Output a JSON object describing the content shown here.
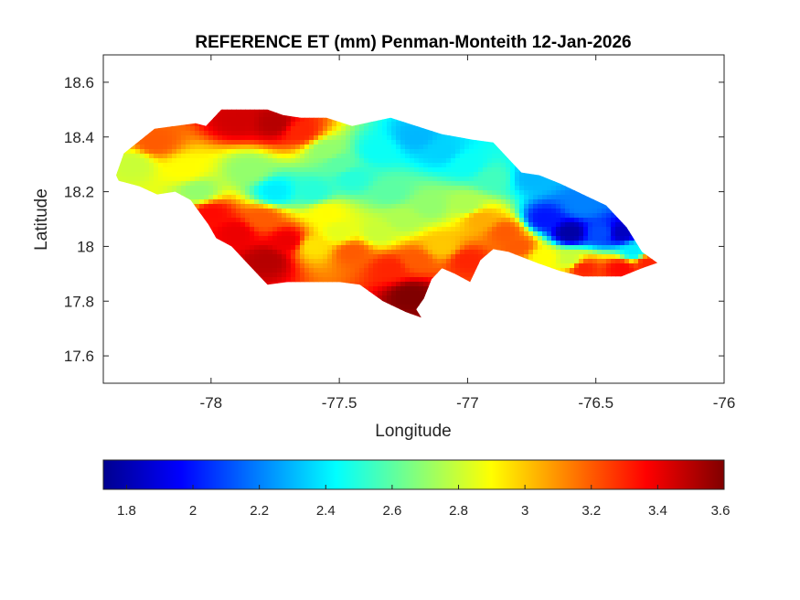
{
  "chart_data": {
    "type": "heatmap",
    "title": "REFERENCE ET (mm) Penman-Monteith 12-Jan-2026",
    "xlabel": "Longitude",
    "ylabel": "Latitude",
    "xlim": [
      -78.42,
      -76
    ],
    "ylim": [
      17.5,
      18.7
    ],
    "x_ticks": [
      -78,
      -77.5,
      -77,
      -76.5,
      -76
    ],
    "x_tick_labels": [
      "-78",
      "-77.5",
      "-77",
      "-76.5",
      "-76"
    ],
    "y_ticks": [
      17.6,
      17.8,
      18,
      18.2,
      18.4,
      18.6
    ],
    "y_tick_labels": [
      "17.6",
      "17.8",
      "18",
      "18.2",
      "18.4",
      "18.6"
    ],
    "colormap": "jet",
    "colorbar": {
      "location": "below",
      "range": [
        1.73,
        3.6
      ],
      "ticks": [
        1.8,
        2,
        2.2,
        2.4,
        2.6,
        2.8,
        3,
        3.2,
        3.4,
        3.6
      ],
      "tick_labels": [
        "1.8",
        "2",
        "2.2",
        "2.4",
        "2.6",
        "2.8",
        "3",
        "3.2",
        "3.4",
        "3.6"
      ]
    },
    "grid": false,
    "land_outline": [
      [
        -78.37,
        18.26
      ],
      [
        -78.34,
        18.34
      ],
      [
        -78.22,
        18.43
      ],
      [
        -78.06,
        18.45
      ],
      [
        -78.02,
        18.44
      ],
      [
        -77.96,
        18.5
      ],
      [
        -77.78,
        18.5
      ],
      [
        -77.72,
        18.48
      ],
      [
        -77.65,
        18.47
      ],
      [
        -77.55,
        18.47
      ],
      [
        -77.45,
        18.44
      ],
      [
        -77.3,
        18.47
      ],
      [
        -77.1,
        18.41
      ],
      [
        -76.98,
        18.39
      ],
      [
        -76.9,
        18.38
      ],
      [
        -76.83,
        18.31
      ],
      [
        -76.79,
        18.27
      ],
      [
        -76.72,
        18.26
      ],
      [
        -76.64,
        18.23
      ],
      [
        -76.55,
        18.19
      ],
      [
        -76.46,
        18.15
      ],
      [
        -76.38,
        18.07
      ],
      [
        -76.32,
        17.98
      ],
      [
        -76.26,
        17.94
      ],
      [
        -76.32,
        17.92
      ],
      [
        -76.4,
        17.89
      ],
      [
        -76.55,
        17.89
      ],
      [
        -76.64,
        17.91
      ],
      [
        -76.73,
        17.94
      ],
      [
        -76.84,
        17.98
      ],
      [
        -76.9,
        17.99
      ],
      [
        -76.95,
        17.95
      ],
      [
        -76.99,
        17.87
      ],
      [
        -77.05,
        17.9
      ],
      [
        -77.1,
        17.92
      ],
      [
        -77.14,
        17.88
      ],
      [
        -77.17,
        17.81
      ],
      [
        -77.2,
        17.77
      ],
      [
        -77.18,
        17.74
      ],
      [
        -77.24,
        17.76
      ],
      [
        -77.33,
        17.8
      ],
      [
        -77.42,
        17.86
      ],
      [
        -77.5,
        17.87
      ],
      [
        -77.6,
        17.87
      ],
      [
        -77.7,
        17.87
      ],
      [
        -77.78,
        17.86
      ],
      [
        -77.85,
        17.93
      ],
      [
        -77.92,
        18.0
      ],
      [
        -77.98,
        18.03
      ],
      [
        -78.01,
        18.08
      ],
      [
        -78.08,
        18.17
      ],
      [
        -78.14,
        18.2
      ],
      [
        -78.21,
        18.19
      ],
      [
        -78.28,
        18.22
      ],
      [
        -78.36,
        18.24
      ]
    ],
    "value_anchors": [
      [
        -78.3,
        18.3,
        2.8
      ],
      [
        -78.22,
        18.38,
        3.2
      ],
      [
        -78.1,
        18.28,
        2.9
      ],
      [
        -78.05,
        18.2,
        2.7
      ],
      [
        -77.9,
        18.46,
        3.45
      ],
      [
        -77.75,
        18.45,
        3.5
      ],
      [
        -77.65,
        18.42,
        3.3
      ],
      [
        -77.55,
        18.35,
        2.7
      ],
      [
        -77.5,
        18.3,
        2.6
      ],
      [
        -77.85,
        18.28,
        2.7
      ],
      [
        -77.75,
        18.2,
        2.4
      ],
      [
        -77.6,
        18.2,
        2.5
      ],
      [
        -77.45,
        18.25,
        2.5
      ],
      [
        -77.35,
        18.35,
        2.45
      ],
      [
        -77.2,
        18.4,
        2.3
      ],
      [
        -77.1,
        18.35,
        2.35
      ],
      [
        -77.0,
        18.3,
        2.45
      ],
      [
        -76.9,
        18.25,
        2.55
      ],
      [
        -77.3,
        18.2,
        2.6
      ],
      [
        -77.15,
        18.15,
        2.7
      ],
      [
        -77.0,
        18.15,
        2.75
      ],
      [
        -76.95,
        18.1,
        3.05
      ],
      [
        -76.85,
        18.05,
        3.2
      ],
      [
        -77.8,
        18.1,
        3.2
      ],
      [
        -77.9,
        18.05,
        3.4
      ],
      [
        -77.78,
        17.95,
        3.5
      ],
      [
        -77.7,
        18.02,
        3.4
      ],
      [
        -77.6,
        18.0,
        2.95
      ],
      [
        -77.5,
        18.05,
        2.85
      ],
      [
        -77.45,
        17.98,
        3.2
      ],
      [
        -77.35,
        18.05,
        2.8
      ],
      [
        -77.3,
        17.92,
        3.3
      ],
      [
        -77.2,
        17.95,
        3.2
      ],
      [
        -77.22,
        17.82,
        3.6
      ],
      [
        -77.1,
        18.0,
        3.0
      ],
      [
        -77.0,
        17.95,
        3.3
      ],
      [
        -76.75,
        18.25,
        2.3
      ],
      [
        -76.7,
        18.1,
        2.0
      ],
      [
        -76.6,
        18.05,
        1.8
      ],
      [
        -76.55,
        18.15,
        2.2
      ],
      [
        -76.48,
        18.05,
        2.1
      ],
      [
        -76.4,
        18.05,
        1.85
      ],
      [
        -76.35,
        17.98,
        2.4
      ],
      [
        -76.6,
        17.95,
        2.8
      ],
      [
        -76.55,
        17.92,
        3.3
      ],
      [
        -76.4,
        17.92,
        3.35
      ],
      [
        -76.3,
        17.94,
        3.3
      ],
      [
        -76.8,
        18.0,
        3.2
      ],
      [
        -76.7,
        17.96,
        2.9
      ],
      [
        -78.0,
        18.12,
        3.35
      ],
      [
        -77.55,
        18.12,
        2.9
      ],
      [
        -77.25,
        18.1,
        2.75
      ]
    ]
  }
}
